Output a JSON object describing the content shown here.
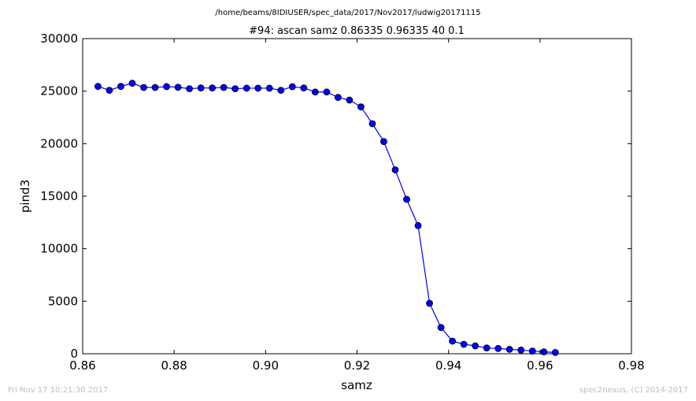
{
  "page": {
    "suptitle": "/home/beams/8IDIUSER/spec_data/2017/Nov2017/ludwig20171115",
    "footer_left": "Fri Nov 17 10:21:30 2017",
    "footer_right": "spec2nexus, (C) 2014-2017"
  },
  "chart_data": {
    "type": "line",
    "title": "#94: ascan  samz 0.86335 0.96335  40 0.1",
    "xlabel": "samz",
    "ylabel": "pind3",
    "xlim": [
      0.86,
      0.98
    ],
    "ylim": [
      0,
      30000
    ],
    "xticks": [
      0.86,
      0.88,
      0.9,
      0.92,
      0.94,
      0.96,
      0.98
    ],
    "xtick_labels": [
      "0.86",
      "0.88",
      "0.90",
      "0.92",
      "0.94",
      "0.96",
      "0.98"
    ],
    "yticks": [
      0,
      5000,
      10000,
      15000,
      20000,
      25000,
      30000
    ],
    "ytick_labels": [
      "0",
      "5000",
      "10000",
      "15000",
      "20000",
      "25000",
      "30000"
    ],
    "grid": false,
    "marker": "circle",
    "color": "#0000ff",
    "x": [
      0.86335,
      0.86585,
      0.86835,
      0.87085,
      0.87335,
      0.87585,
      0.87835,
      0.88085,
      0.88335,
      0.88585,
      0.88835,
      0.89085,
      0.89335,
      0.89585,
      0.89835,
      0.90085,
      0.90335,
      0.90585,
      0.90835,
      0.91085,
      0.91335,
      0.91585,
      0.91835,
      0.92085,
      0.92335,
      0.92585,
      0.92835,
      0.93085,
      0.93335,
      0.93585,
      0.93835,
      0.94085,
      0.94335,
      0.94585,
      0.94835,
      0.95085,
      0.95335,
      0.95585,
      0.95835,
      0.96085,
      0.96335
    ],
    "y": [
      25450,
      25080,
      25450,
      25750,
      25350,
      25350,
      25430,
      25370,
      25230,
      25300,
      25300,
      25350,
      25230,
      25280,
      25280,
      25280,
      25080,
      25420,
      25300,
      24920,
      24920,
      24400,
      24150,
      23500,
      21900,
      20200,
      17500,
      14700,
      12200,
      4800,
      2500,
      1200,
      900,
      750,
      550,
      500,
      420,
      350,
      250,
      180,
      120
    ]
  }
}
